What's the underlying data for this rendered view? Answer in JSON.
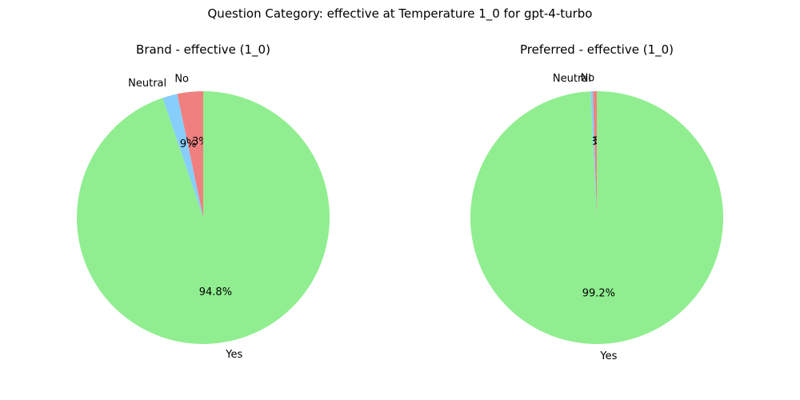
{
  "figure": {
    "title": "Question Category: effective at Temperature 1_0 for gpt-4-turbo"
  },
  "chart_data": [
    {
      "type": "pie",
      "title": "Brand - effective (1_0)",
      "start_angle_deg": 90,
      "direction": "counterclockwise",
      "categories": [
        "No",
        "Neutral",
        "Yes"
      ],
      "values": [
        3.3,
        1.9,
        94.8
      ],
      "pct_labels": [
        "3.3%",
        "1.9%",
        "94.8%"
      ],
      "colors": [
        "#f08080",
        "#87cefa",
        "#90ee90"
      ]
    },
    {
      "type": "pie",
      "title": "Preferred - effective (1_0)",
      "start_angle_deg": 90,
      "direction": "counterclockwise",
      "categories": [
        "No",
        "Neutral",
        "Yes"
      ],
      "values": [
        0.5,
        0.3,
        99.2
      ],
      "pct_labels": [
        "0.5%",
        "0.3%",
        "99.2%"
      ],
      "colors": [
        "#f08080",
        "#87cefa",
        "#90ee90"
      ]
    }
  ]
}
